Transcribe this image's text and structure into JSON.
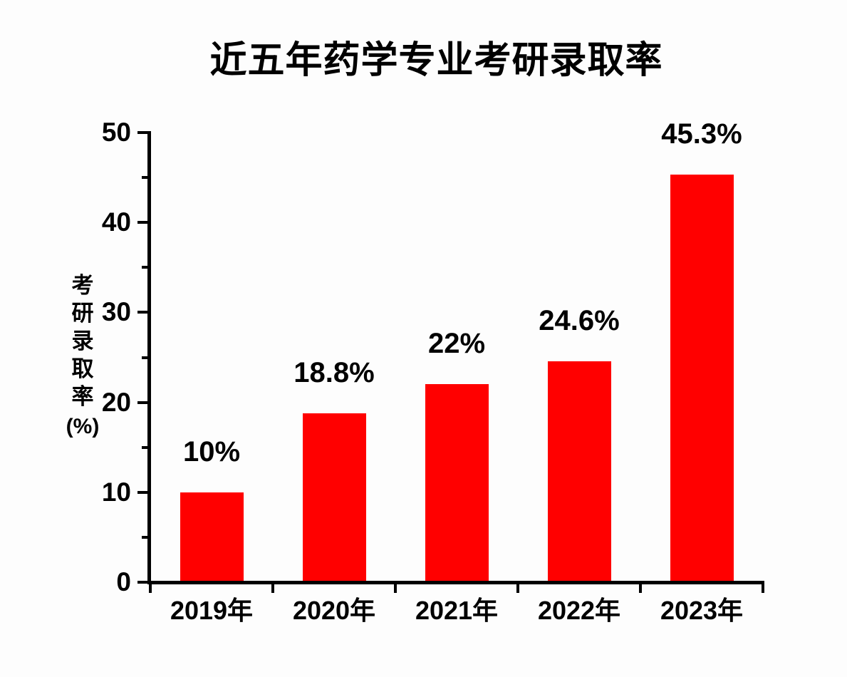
{
  "chart_data": {
    "type": "bar",
    "title": "近五年药学专业考研录取率",
    "categories": [
      "2019年",
      "2020年",
      "2021年",
      "2022年",
      "2023年"
    ],
    "values": [
      10,
      18.8,
      22,
      24.6,
      45.3
    ],
    "value_labels": [
      "10%",
      "18.8%",
      "22%",
      "24.6%",
      "45.3%"
    ],
    "xlabel": "",
    "ylabel": "考研录取率",
    "ylabel_unit": "(%)",
    "ylim": [
      0,
      50
    ],
    "yticks": [
      0,
      10,
      20,
      30,
      40,
      50
    ],
    "yticks_minor": [
      5,
      15,
      25,
      35,
      45
    ],
    "grid": false,
    "legend": "none",
    "colors": {
      "bar": "#FF0000",
      "axis": "#000000",
      "text": "#000000",
      "background": "#FDFDFD"
    }
  }
}
